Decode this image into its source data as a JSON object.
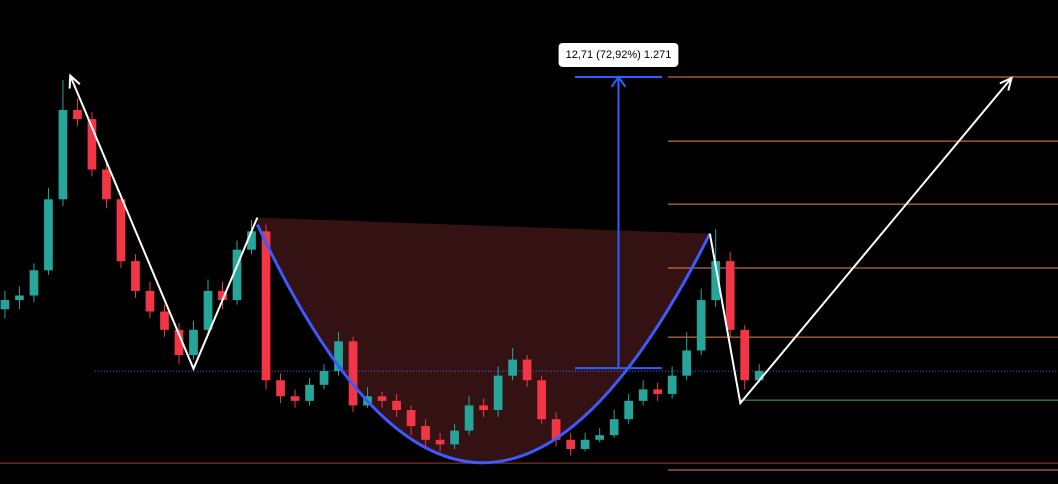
{
  "chart_data": {
    "type": "candlestick",
    "up_color": "#26a69a",
    "down_color": "#f23645",
    "xlim": [
      -0.34,
      72.6
    ],
    "ylim": [
      12.37,
      33.5
    ],
    "open": [
      20.0,
      20.4,
      20.6,
      21.7,
      24.8,
      28.7,
      28.3,
      26.1,
      24.8,
      22.1,
      20.8,
      19.9,
      19.1,
      18.0,
      19.1,
      20.8,
      20.4,
      22.6,
      23.4,
      16.9,
      16.2,
      16.0,
      16.7,
      17.3,
      18.6,
      15.8,
      16.2,
      16.0,
      15.6,
      14.9,
      14.3,
      14.1,
      14.7,
      15.8,
      15.6,
      17.1,
      17.8,
      16.9,
      15.2,
      14.3,
      13.9,
      14.3,
      14.5,
      15.2,
      16.0,
      16.5,
      16.3,
      17.1,
      18.2,
      20.4,
      22.1,
      19.1,
      16.9
    ],
    "high": [
      20.8,
      21.0,
      22.0,
      25.3,
      30.0,
      29.2,
      28.6,
      26.5,
      25.0,
      22.4,
      21.2,
      20.2,
      19.4,
      19.5,
      21.3,
      21.2,
      23.0,
      23.9,
      23.7,
      17.2,
      16.5,
      17.0,
      17.6,
      19.0,
      18.8,
      16.6,
      16.4,
      16.3,
      15.8,
      15.2,
      14.6,
      15.0,
      16.2,
      16.1,
      17.5,
      18.3,
      18.0,
      17.1,
      15.5,
      14.6,
      14.6,
      14.8,
      15.6,
      16.3,
      16.9,
      16.8,
      17.5,
      19.0,
      20.9,
      23.5,
      22.5,
      19.3,
      17.6
    ],
    "low": [
      19.6,
      20.0,
      20.3,
      21.5,
      24.5,
      28.0,
      25.8,
      24.4,
      21.8,
      20.5,
      19.6,
      18.8,
      17.6,
      17.8,
      19.0,
      20.0,
      20.2,
      22.4,
      16.5,
      15.9,
      15.7,
      15.8,
      16.5,
      17.1,
      15.5,
      15.7,
      15.7,
      15.3,
      14.5,
      14.0,
      13.8,
      13.9,
      14.5,
      15.3,
      15.3,
      16.9,
      16.6,
      15.0,
      14.0,
      13.6,
      13.8,
      14.2,
      14.4,
      15.0,
      15.8,
      16.0,
      16.1,
      16.9,
      18.0,
      20.1,
      18.8,
      16.5,
      16.8
    ],
    "close": [
      20.4,
      20.6,
      21.7,
      24.8,
      28.7,
      28.3,
      26.1,
      24.8,
      22.1,
      20.8,
      19.9,
      19.1,
      18.0,
      19.1,
      20.8,
      20.4,
      22.6,
      23.4,
      16.9,
      16.2,
      16.0,
      16.7,
      17.3,
      18.6,
      15.8,
      16.2,
      16.0,
      15.6,
      14.9,
      14.3,
      14.1,
      14.7,
      15.8,
      15.6,
      17.1,
      17.8,
      16.9,
      15.2,
      14.3,
      13.9,
      14.3,
      14.5,
      15.2,
      16.0,
      16.5,
      16.3,
      17.1,
      18.2,
      20.4,
      22.1,
      19.1,
      16.9,
      17.3
    ],
    "hlines": [
      {
        "value": 30.14,
        "color": "#e8884a",
        "start": 45.7,
        "dotted": false
      },
      {
        "value": 27.34,
        "color": "#e8884a",
        "start": 45.7,
        "dotted": false
      },
      {
        "value": 24.59,
        "color": "#e8884a",
        "start": 45.7,
        "dotted": false
      },
      {
        "value": 21.8,
        "color": "#e8884a",
        "start": 45.7,
        "dotted": false
      },
      {
        "value": 18.78,
        "color": "#e8884a",
        "start": 45.7,
        "dotted": false
      },
      {
        "value": 17.3,
        "color": "#4a6cf7",
        "start": 6.2,
        "dotted": true
      },
      {
        "value": 16.03,
        "color": "#4caf50",
        "start": 50.7,
        "dotted": false
      },
      {
        "value": 13.28,
        "color": "#b2322f",
        "start": -0.34,
        "dotted": false
      },
      {
        "value": 12.98,
        "color": "#e8884a",
        "start": 45.7,
        "dotted": false
      }
    ],
    "cup": {
      "x": [
        17.4,
        32.8,
        48.6
      ],
      "y": [
        23.7,
        13.3,
        23.3
      ],
      "fill_top": [
        24.0,
        23.3
      ],
      "color": "#3d5afe",
      "fill": "#3a1416"
    },
    "pattern_color": "#ffffff",
    "patterns": [
      {
        "x": [
          4.5,
          13.0,
          17.4
        ],
        "y": [
          30.2,
          17.4,
          24.0
        ]
      },
      {
        "x": [
          48.6,
          50.7,
          69.4
        ],
        "y": [
          23.3,
          15.9,
          30.1
        ]
      }
    ],
    "measure": {
      "label": "12,71 (72,92%) 1.271",
      "from": 17.43,
      "to": 30.14,
      "x": [
        39.3,
        45.3
      ],
      "color": "#2962ff"
    }
  }
}
